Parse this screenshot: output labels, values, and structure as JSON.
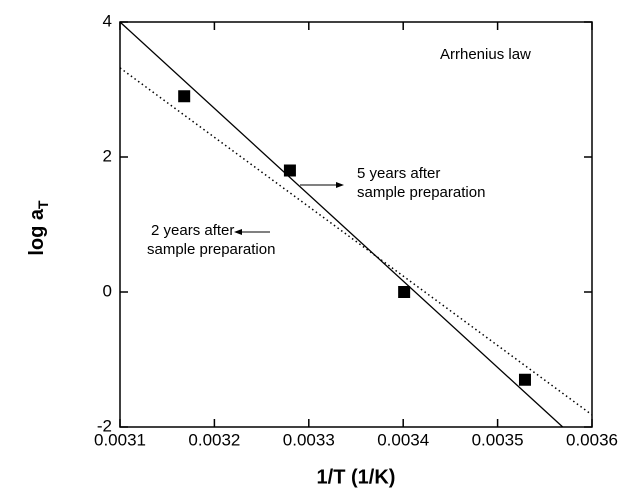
{
  "chart_data": {
    "type": "scatter",
    "xlabel": "1/T (1/K)",
    "ylabel": "log a",
    "ylabel_sub": "T",
    "xlim": [
      0.0031,
      0.0036
    ],
    "xticks": [
      0.0031,
      0.0032,
      0.0033,
      0.0034,
      0.0035,
      0.0036
    ],
    "ylim": [
      -2,
      4
    ],
    "yticks": [
      -2,
      0,
      2,
      4
    ],
    "annotations": [
      {
        "lines": [
          "Arrhenius law"
        ]
      },
      {
        "lines": [
          "5 years after",
          "sample preparation"
        ]
      },
      {
        "lines": [
          "2 years after",
          "sample preparation"
        ]
      }
    ],
    "series": [
      {
        "mode": "markers",
        "color": "#000000",
        "x": [
          0.003168,
          0.00328,
          0.003401,
          0.003529
        ],
        "values": [
          2.9,
          1.8,
          0,
          -1.3
        ]
      },
      {
        "mode": "line",
        "style": "solid",
        "color": "#000000",
        "x": [
          0.0031,
          0.003569
        ],
        "values": [
          4,
          -2
        ]
      },
      {
        "mode": "line",
        "style": "dotted",
        "color": "#000000",
        "x": [
          0.0031,
          0.0036
        ],
        "values": [
          3.32,
          -1.82
        ]
      }
    ]
  }
}
